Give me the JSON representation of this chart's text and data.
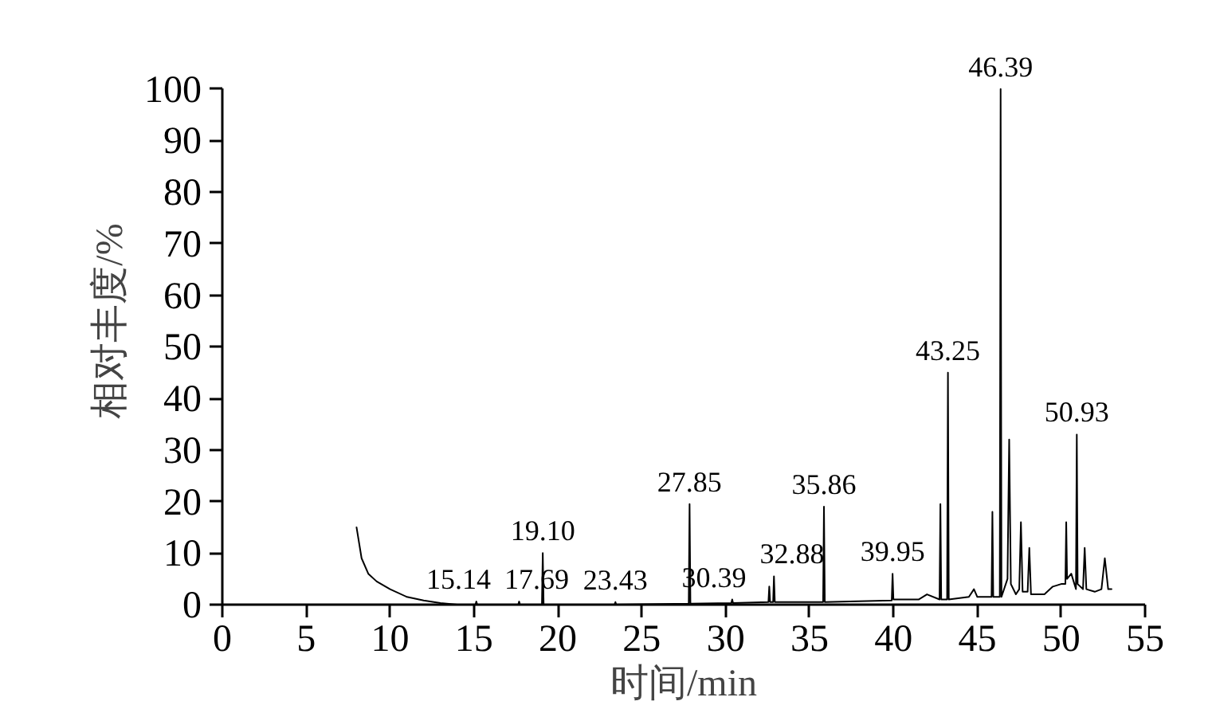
{
  "chart_data": {
    "type": "line",
    "xlabel": "时间/min",
    "ylabel": "相对丰度/%",
    "xlim": [
      0,
      55
    ],
    "ylim": [
      0,
      100
    ],
    "xticks": [
      0,
      5,
      10,
      15,
      20,
      25,
      30,
      35,
      40,
      45,
      50,
      55
    ],
    "yticks": [
      0,
      10,
      20,
      30,
      40,
      50,
      60,
      70,
      80,
      90,
      100
    ],
    "grid": false,
    "series": [
      {
        "color": "#000000",
        "x": [
          8.0,
          8.3,
          8.7,
          9.2,
          10,
          11,
          12,
          13,
          14,
          15.09,
          15.14,
          15.19,
          17.64,
          17.69,
          17.74,
          19.05,
          19.1,
          19.15,
          23.38,
          23.43,
          23.48,
          27.8,
          27.85,
          27.9,
          30.34,
          30.39,
          30.44,
          32.55,
          32.6,
          32.65,
          32.83,
          32.88,
          32.93,
          35.81,
          35.86,
          35.91,
          39.9,
          39.95,
          40.0,
          41.5,
          42.0,
          42.75,
          42.8,
          42.85,
          43.2,
          43.25,
          43.3,
          44.5,
          44.8,
          45.0,
          45.85,
          45.9,
          45.95,
          46.34,
          46.39,
          46.44,
          46.8,
          46.9,
          47.0,
          47.3,
          47.5,
          47.6,
          47.7,
          48.0,
          48.1,
          48.2,
          49.0,
          49.5,
          50.0,
          50.25,
          50.3,
          50.35,
          50.6,
          50.88,
          50.93,
          50.98,
          51.3,
          51.4,
          51.5,
          52.0,
          52.4,
          52.6,
          52.8,
          53.0
        ],
        "values": [
          15,
          9,
          6,
          4.5,
          3,
          1.5,
          0.8,
          0.3,
          0,
          0,
          0.6,
          0,
          0,
          0.6,
          0,
          0,
          10,
          0,
          0,
          0.5,
          0,
          0.2,
          19.5,
          0.2,
          0.3,
          1,
          0.3,
          0.5,
          3.5,
          0.5,
          0.5,
          5.5,
          0.5,
          0.5,
          19,
          0.5,
          0.8,
          6,
          1,
          1,
          2,
          1,
          19.5,
          1,
          1,
          45,
          1,
          1.5,
          3,
          1.5,
          1.5,
          18,
          1.5,
          1.5,
          100,
          1.5,
          5,
          32,
          4,
          2,
          3,
          16,
          2.5,
          2.5,
          11,
          2,
          2,
          3.5,
          4,
          4,
          16,
          5,
          6,
          3,
          33,
          4,
          3,
          11,
          3,
          2.5,
          3,
          9,
          3,
          3
        ]
      }
    ],
    "annotations": [
      {
        "text": "15.14",
        "x": 15.14,
        "y": 0.6
      },
      {
        "text": "17.69",
        "x": 17.69,
        "y": 0.6
      },
      {
        "text": "19.10",
        "x": 19.1,
        "y": 10
      },
      {
        "text": "23.43",
        "x": 23.43,
        "y": 0.5
      },
      {
        "text": "27.85",
        "x": 27.85,
        "y": 19.5
      },
      {
        "text": "30.39",
        "x": 30.39,
        "y": 1
      },
      {
        "text": "32.88",
        "x": 32.88,
        "y": 5.5
      },
      {
        "text": "35.86",
        "x": 35.86,
        "y": 19
      },
      {
        "text": "39.95",
        "x": 39.95,
        "y": 6
      },
      {
        "text": "43.25",
        "x": 43.25,
        "y": 45
      },
      {
        "text": "46.39",
        "x": 46.39,
        "y": 100
      },
      {
        "text": "50.93",
        "x": 50.93,
        "y": 33
      }
    ]
  }
}
